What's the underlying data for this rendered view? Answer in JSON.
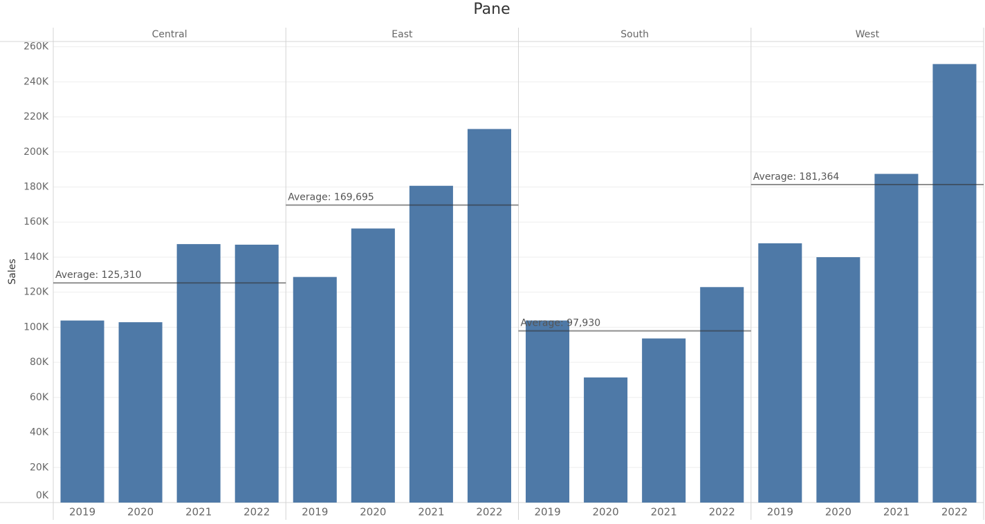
{
  "chart_data": {
    "type": "bar",
    "title": "Pane",
    "y_label": "Sales",
    "categories": [
      "2019",
      "2020",
      "2021",
      "2022"
    ],
    "color": "#4e79a7",
    "facets": [
      {
        "name": "Central",
        "values": [
          103838,
          102874,
          147429,
          147098
        ],
        "average": 125310,
        "average_label": "Average: 125,310"
      },
      {
        "name": "East",
        "values": [
          128680,
          156332,
          180686,
          213082
        ],
        "average": 169695,
        "average_label": "Average: 169,695"
      },
      {
        "name": "South",
        "values": [
          103846,
          71360,
          93610,
          122906
        ],
        "average": 97930,
        "average_label": "Average: 97,930"
      },
      {
        "name": "West",
        "values": [
          147883,
          139966,
          187480,
          250128
        ],
        "average": 181364,
        "average_label": "Average: 181,364"
      }
    ],
    "ylim": [
      0,
      263000
    ],
    "yticks": [
      {
        "value": 0,
        "label": "0K"
      },
      {
        "value": 20000,
        "label": "20K"
      },
      {
        "value": 40000,
        "label": "40K"
      },
      {
        "value": 60000,
        "label": "60K"
      },
      {
        "value": 80000,
        "label": "80K"
      },
      {
        "value": 100000,
        "label": "100K"
      },
      {
        "value": 120000,
        "label": "120K"
      },
      {
        "value": 140000,
        "label": "140K"
      },
      {
        "value": 160000,
        "label": "160K"
      },
      {
        "value": 180000,
        "label": "180K"
      },
      {
        "value": 200000,
        "label": "200K"
      },
      {
        "value": 220000,
        "label": "220K"
      },
      {
        "value": 240000,
        "label": "240K"
      },
      {
        "value": 260000,
        "label": "260K"
      }
    ],
    "grid": true
  }
}
